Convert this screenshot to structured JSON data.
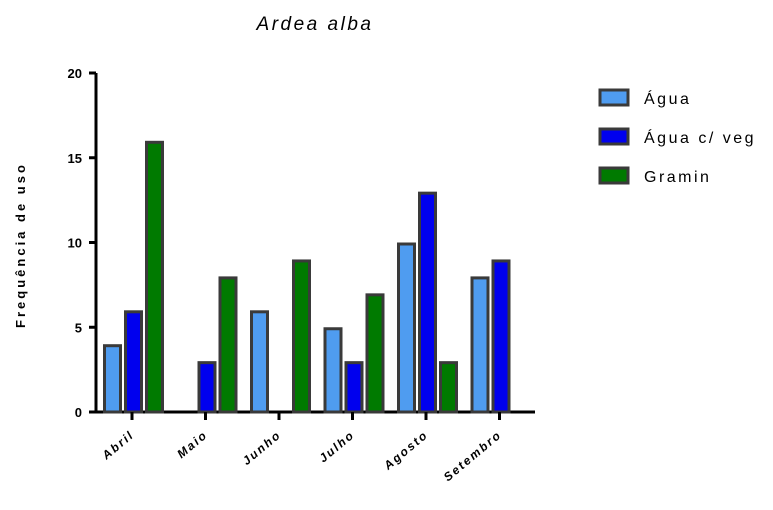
{
  "chart_data": {
    "type": "bar",
    "title": "Ardea alba",
    "xlabel": "",
    "ylabel": "Frequência de uso",
    "ylim": [
      0,
      20
    ],
    "yticks": [
      0,
      5,
      10,
      15,
      20
    ],
    "grid": false,
    "legend_position": "right",
    "categories": [
      "Abril",
      "Maio",
      "Junho",
      "Julho",
      "Agosto",
      "Setembro"
    ],
    "series": [
      {
        "name": "Água",
        "color": "#4f9cf0",
        "values": [
          4,
          0,
          6,
          5,
          10,
          8
        ]
      },
      {
        "name": "Água c/ veg",
        "color": "#0000ee",
        "values": [
          6,
          3,
          0,
          3,
          13,
          9
        ]
      },
      {
        "name": "Gramin",
        "color": "#007a00",
        "values": [
          16,
          8,
          9,
          7,
          3,
          0
        ]
      }
    ],
    "bar_edge_color": "#3a3a3a"
  }
}
